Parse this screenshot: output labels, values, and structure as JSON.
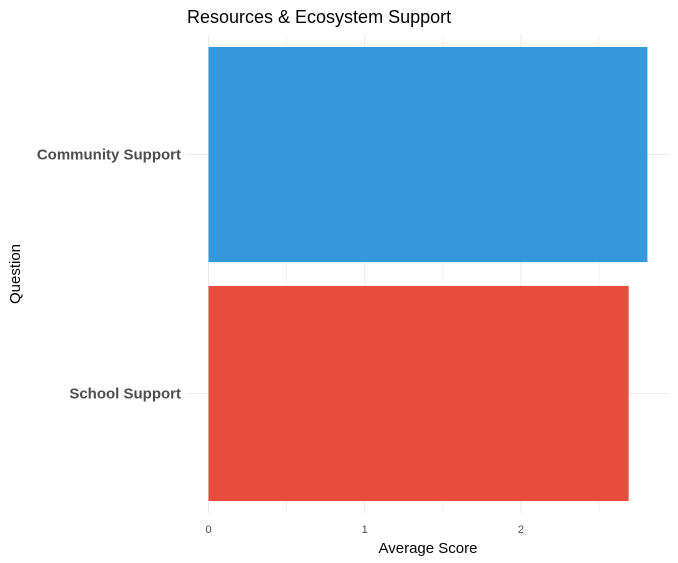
{
  "chart_data": {
    "type": "bar",
    "orientation": "horizontal",
    "title": "Resources & Ecosystem Support",
    "xlabel": "Average Score",
    "ylabel": "Question",
    "categories": [
      "School Support",
      "Community Support"
    ],
    "values": [
      2.69,
      2.81
    ],
    "colors": [
      "#E74C3C",
      "#3498DB"
    ],
    "xlim": [
      0,
      2.95
    ],
    "xticks": [
      0,
      1,
      2
    ],
    "grid": true,
    "legend": "none"
  }
}
